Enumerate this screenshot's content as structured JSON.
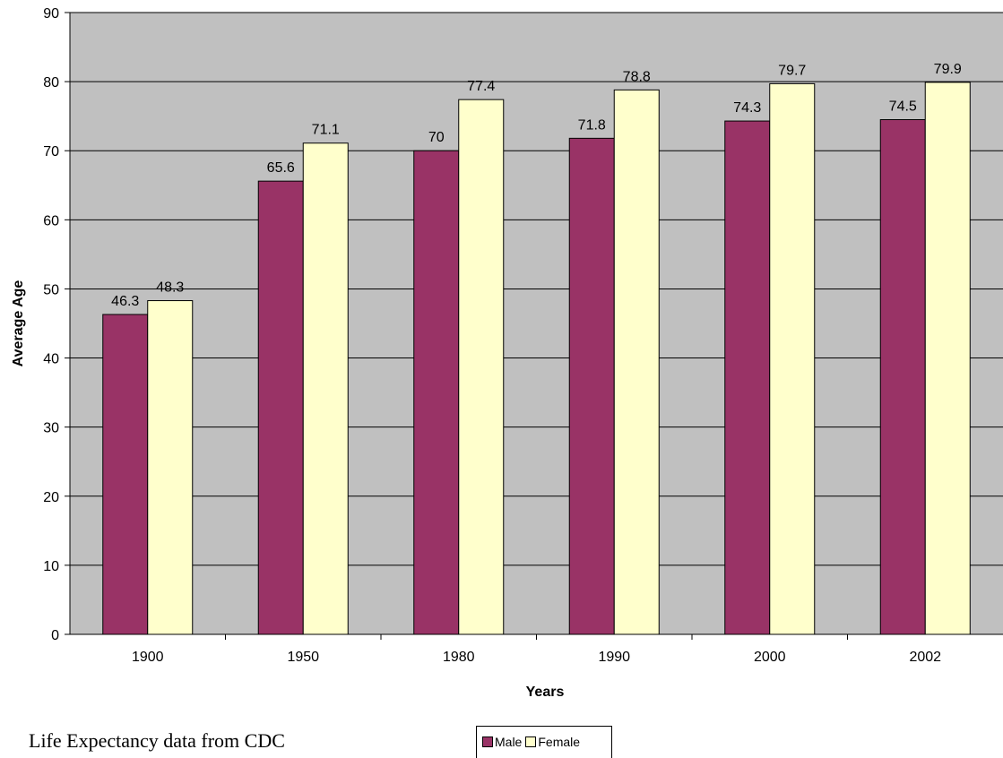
{
  "caption": "Life Expectancy data from CDC",
  "chart_data": {
    "type": "bar",
    "title": "",
    "xlabel": "Years",
    "ylabel": "Average Age",
    "categories": [
      "1900",
      "1950",
      "1980",
      "1990",
      "2000",
      "2002"
    ],
    "series": [
      {
        "name": "Male",
        "color": "#993366",
        "values": [
          46.3,
          65.6,
          70,
          71.8,
          74.3,
          74.5
        ]
      },
      {
        "name": "Female",
        "color": "#FFFFCC",
        "values": [
          48.3,
          71.1,
          77.4,
          78.8,
          79.7,
          79.9
        ]
      }
    ],
    "ylim": [
      0,
      90
    ],
    "yticks": [
      "0",
      "10",
      "20",
      "30",
      "40",
      "50",
      "60",
      "70",
      "80",
      "90"
    ],
    "data_labels": true,
    "grid": true,
    "plot_background": "#C0C0C0",
    "legend_position": "bottom"
  }
}
